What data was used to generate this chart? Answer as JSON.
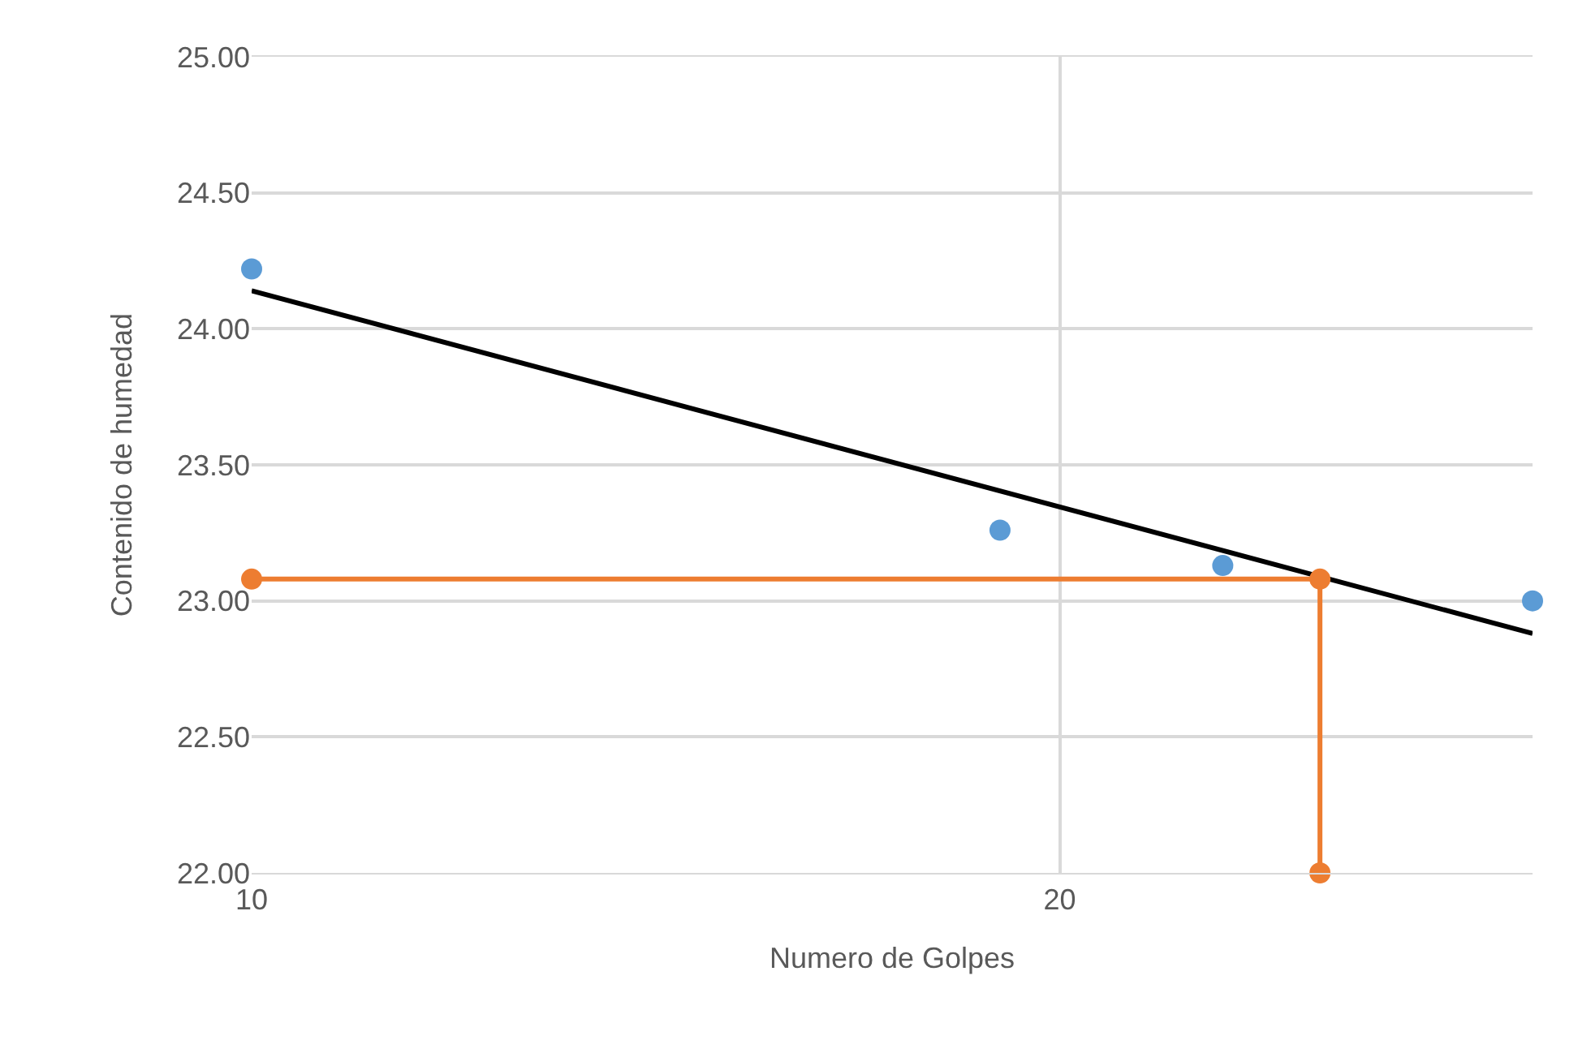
{
  "chart_data": {
    "type": "scatter",
    "xlabel": "Numero de Golpes",
    "ylabel": "Contenido de humedad",
    "log": "x",
    "xlim": [
      10,
      30
    ],
    "xticks": [
      10,
      20
    ],
    "ylim": [
      22,
      25
    ],
    "yticks": [
      {
        "value": 22,
        "label": "22.00"
      },
      {
        "value": 22.5,
        "label": "22.50"
      },
      {
        "value": 23,
        "label": "23.00"
      },
      {
        "value": 23.5,
        "label": "23.50"
      },
      {
        "value": 24,
        "label": "24.00"
      },
      {
        "value": 24.5,
        "label": "24.50"
      },
      {
        "value": 25,
        "label": "25.00"
      }
    ],
    "grid": true,
    "series": [
      {
        "type": "line",
        "color": "#000000",
        "marker": "none",
        "x": [
          10,
          30
        ],
        "values": [
          24.14,
          22.88
        ]
      },
      {
        "color": "#5b9bd5",
        "marker": "circle",
        "x": [
          10,
          19,
          23,
          30
        ],
        "values": [
          24.22,
          23.26,
          23.13,
          23.0
        ]
      },
      {
        "type": "line",
        "color": "#ed7d31",
        "marker": "circle",
        "x": [
          10,
          25,
          25
        ],
        "values": [
          23.08,
          23.08,
          22.0
        ]
      }
    ]
  }
}
